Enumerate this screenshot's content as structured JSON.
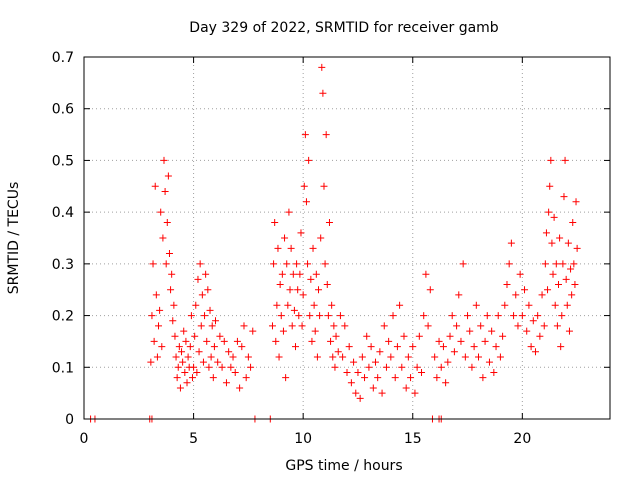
{
  "chart_data": {
    "type": "scatter",
    "title": "Day 329 of 2022, SRMTID for receiver gamb",
    "xlabel": "GPS time / hours",
    "ylabel": "SRMTID / TECUs",
    "xlim": [
      0,
      24
    ],
    "ylim": [
      0,
      0.7
    ],
    "xticks": [
      0,
      5,
      10,
      15,
      20
    ],
    "xtick_labels": [
      "0",
      "5",
      "10",
      "15",
      "20"
    ],
    "yticks": [
      0,
      0.1,
      0.2,
      0.3,
      0.4,
      0.5,
      0.6,
      0.7
    ],
    "ytick_labels": [
      "0",
      "0.1",
      "0.2",
      "0.3",
      "0.4",
      "0.5",
      "0.6",
      "0.7"
    ],
    "grid": true,
    "marker": "+",
    "color": "#ff0000",
    "series": [
      {
        "name": "SRMTID",
        "points": [
          [
            0.3,
            0
          ],
          [
            0.5,
            0
          ],
          [
            3.0,
            0
          ],
          [
            3.1,
            0
          ],
          [
            7.8,
            0
          ],
          [
            8.5,
            0
          ],
          [
            15.9,
            0
          ],
          [
            16.2,
            0
          ],
          [
            16.3,
            0
          ],
          [
            3.05,
            0.11
          ],
          [
            3.1,
            0.2
          ],
          [
            3.15,
            0.3
          ],
          [
            3.2,
            0.15
          ],
          [
            3.25,
            0.45
          ],
          [
            3.3,
            0.24
          ],
          [
            3.35,
            0.12
          ],
          [
            3.4,
            0.18
          ],
          [
            3.45,
            0.21
          ],
          [
            3.5,
            0.4
          ],
          [
            3.55,
            0.14
          ],
          [
            3.6,
            0.35
          ],
          [
            3.65,
            0.5
          ],
          [
            3.7,
            0.44
          ],
          [
            3.75,
            0.3
          ],
          [
            3.8,
            0.38
          ],
          [
            3.85,
            0.47
          ],
          [
            3.9,
            0.32
          ],
          [
            3.95,
            0.25
          ],
          [
            4.0,
            0.28
          ],
          [
            4.05,
            0.19
          ],
          [
            4.1,
            0.22
          ],
          [
            4.15,
            0.16
          ],
          [
            4.2,
            0.12
          ],
          [
            4.25,
            0.08
          ],
          [
            4.3,
            0.1
          ],
          [
            4.35,
            0.14
          ],
          [
            4.4,
            0.06
          ],
          [
            4.45,
            0.13
          ],
          [
            4.5,
            0.11
          ],
          [
            4.55,
            0.17
          ],
          [
            4.6,
            0.09
          ],
          [
            4.65,
            0.15
          ],
          [
            4.7,
            0.07
          ],
          [
            4.75,
            0.12
          ],
          [
            4.8,
            0.1
          ],
          [
            4.85,
            0.14
          ],
          [
            4.9,
            0.2
          ],
          [
            4.95,
            0.08
          ],
          [
            5.0,
            0.1
          ],
          [
            5.05,
            0.16
          ],
          [
            5.1,
            0.22
          ],
          [
            5.15,
            0.09
          ],
          [
            5.2,
            0.27
          ],
          [
            5.25,
            0.13
          ],
          [
            5.3,
            0.3
          ],
          [
            5.35,
            0.18
          ],
          [
            5.4,
            0.24
          ],
          [
            5.45,
            0.11
          ],
          [
            5.5,
            0.2
          ],
          [
            5.55,
            0.28
          ],
          [
            5.6,
            0.15
          ],
          [
            5.65,
            0.25
          ],
          [
            5.7,
            0.1
          ],
          [
            5.75,
            0.21
          ],
          [
            5.8,
            0.12
          ],
          [
            5.85,
            0.18
          ],
          [
            5.9,
            0.08
          ],
          [
            5.95,
            0.14
          ],
          [
            6.0,
            0.19
          ],
          [
            6.1,
            0.11
          ],
          [
            6.2,
            0.16
          ],
          [
            6.3,
            0.1
          ],
          [
            6.4,
            0.15
          ],
          [
            6.5,
            0.07
          ],
          [
            6.6,
            0.13
          ],
          [
            6.7,
            0.1
          ],
          [
            6.8,
            0.12
          ],
          [
            6.9,
            0.09
          ],
          [
            7.0,
            0.15
          ],
          [
            7.1,
            0.06
          ],
          [
            7.2,
            0.14
          ],
          [
            7.3,
            0.18
          ],
          [
            7.4,
            0.08
          ],
          [
            7.5,
            0.12
          ],
          [
            7.6,
            0.1
          ],
          [
            7.7,
            0.17
          ],
          [
            8.6,
            0.18
          ],
          [
            8.65,
            0.3
          ],
          [
            8.7,
            0.38
          ],
          [
            8.75,
            0.15
          ],
          [
            8.8,
            0.22
          ],
          [
            8.85,
            0.33
          ],
          [
            8.9,
            0.12
          ],
          [
            8.95,
            0.26
          ],
          [
            9.0,
            0.2
          ],
          [
            9.05,
            0.28
          ],
          [
            9.1,
            0.17
          ],
          [
            9.15,
            0.35
          ],
          [
            9.2,
            0.08
          ],
          [
            9.25,
            0.3
          ],
          [
            9.3,
            0.22
          ],
          [
            9.35,
            0.4
          ],
          [
            9.4,
            0.25
          ],
          [
            9.45,
            0.33
          ],
          [
            9.5,
            0.18
          ],
          [
            9.55,
            0.28
          ],
          [
            9.6,
            0.21
          ],
          [
            9.65,
            0.14
          ],
          [
            9.7,
            0.3
          ],
          [
            9.75,
            0.25
          ],
          [
            9.8,
            0.2
          ],
          [
            9.85,
            0.28
          ],
          [
            9.9,
            0.36
          ],
          [
            9.95,
            0.18
          ],
          [
            10.0,
            0.24
          ],
          [
            10.05,
            0.45
          ],
          [
            10.1,
            0.55
          ],
          [
            10.15,
            0.42
          ],
          [
            10.2,
            0.3
          ],
          [
            10.25,
            0.5
          ],
          [
            10.3,
            0.2
          ],
          [
            10.35,
            0.27
          ],
          [
            10.4,
            0.15
          ],
          [
            10.45,
            0.33
          ],
          [
            10.5,
            0.22
          ],
          [
            10.55,
            0.17
          ],
          [
            10.6,
            0.28
          ],
          [
            10.65,
            0.12
          ],
          [
            10.7,
            0.25
          ],
          [
            10.75,
            0.2
          ],
          [
            10.8,
            0.35
          ],
          [
            10.85,
            0.68
          ],
          [
            10.9,
            0.63
          ],
          [
            10.95,
            0.45
          ],
          [
            11.0,
            0.3
          ],
          [
            11.05,
            0.55
          ],
          [
            11.1,
            0.26
          ],
          [
            11.15,
            0.2
          ],
          [
            11.2,
            0.38
          ],
          [
            11.25,
            0.15
          ],
          [
            11.3,
            0.22
          ],
          [
            11.35,
            0.12
          ],
          [
            11.4,
            0.18
          ],
          [
            11.45,
            0.1
          ],
          [
            11.5,
            0.16
          ],
          [
            11.6,
            0.13
          ],
          [
            11.7,
            0.2
          ],
          [
            11.8,
            0.12
          ],
          [
            11.9,
            0.18
          ],
          [
            12.0,
            0.09
          ],
          [
            12.1,
            0.14
          ],
          [
            12.2,
            0.07
          ],
          [
            12.3,
            0.11
          ],
          [
            12.4,
            0.05
          ],
          [
            12.5,
            0.09
          ],
          [
            12.6,
            0.04
          ],
          [
            12.7,
            0.12
          ],
          [
            12.8,
            0.08
          ],
          [
            12.9,
            0.16
          ],
          [
            13.0,
            0.1
          ],
          [
            13.1,
            0.14
          ],
          [
            13.2,
            0.06
          ],
          [
            13.3,
            0.11
          ],
          [
            13.4,
            0.08
          ],
          [
            13.5,
            0.13
          ],
          [
            13.6,
            0.05
          ],
          [
            13.7,
            0.18
          ],
          [
            13.8,
            0.1
          ],
          [
            13.9,
            0.15
          ],
          [
            14.0,
            0.12
          ],
          [
            14.1,
            0.2
          ],
          [
            14.2,
            0.08
          ],
          [
            14.3,
            0.14
          ],
          [
            14.4,
            0.22
          ],
          [
            14.5,
            0.1
          ],
          [
            14.6,
            0.16
          ],
          [
            14.7,
            0.06
          ],
          [
            14.8,
            0.12
          ],
          [
            14.9,
            0.08
          ],
          [
            15.0,
            0.14
          ],
          [
            15.1,
            0.05
          ],
          [
            15.2,
            0.1
          ],
          [
            15.3,
            0.16
          ],
          [
            15.4,
            0.09
          ],
          [
            15.5,
            0.2
          ],
          [
            15.6,
            0.28
          ],
          [
            15.7,
            0.18
          ],
          [
            15.8,
            0.25
          ],
          [
            16.0,
            0.12
          ],
          [
            16.1,
            0.08
          ],
          [
            16.2,
            0.15
          ],
          [
            16.3,
            0.1
          ],
          [
            16.4,
            0.14
          ],
          [
            16.5,
            0.07
          ],
          [
            16.6,
            0.11
          ],
          [
            16.7,
            0.16
          ],
          [
            16.8,
            0.2
          ],
          [
            16.9,
            0.13
          ],
          [
            17.0,
            0.18
          ],
          [
            17.1,
            0.24
          ],
          [
            17.2,
            0.15
          ],
          [
            17.3,
            0.3
          ],
          [
            17.4,
            0.12
          ],
          [
            17.5,
            0.2
          ],
          [
            17.6,
            0.17
          ],
          [
            17.7,
            0.1
          ],
          [
            17.8,
            0.14
          ],
          [
            17.9,
            0.22
          ],
          [
            18.0,
            0.12
          ],
          [
            18.1,
            0.18
          ],
          [
            18.2,
            0.08
          ],
          [
            18.3,
            0.15
          ],
          [
            18.4,
            0.2
          ],
          [
            18.5,
            0.11
          ],
          [
            18.6,
            0.17
          ],
          [
            18.7,
            0.09
          ],
          [
            18.8,
            0.14
          ],
          [
            18.9,
            0.2
          ],
          [
            19.0,
            0.12
          ],
          [
            19.1,
            0.16
          ],
          [
            19.2,
            0.22
          ],
          [
            19.3,
            0.26
          ],
          [
            19.4,
            0.3
          ],
          [
            19.5,
            0.34
          ],
          [
            19.6,
            0.2
          ],
          [
            19.7,
            0.24
          ],
          [
            19.8,
            0.18
          ],
          [
            19.9,
            0.28
          ],
          [
            20.0,
            0.2
          ],
          [
            20.1,
            0.25
          ],
          [
            20.2,
            0.17
          ],
          [
            20.3,
            0.22
          ],
          [
            20.4,
            0.14
          ],
          [
            20.5,
            0.19
          ],
          [
            20.6,
            0.13
          ],
          [
            20.7,
            0.2
          ],
          [
            20.8,
            0.16
          ],
          [
            20.9,
            0.24
          ],
          [
            21.0,
            0.18
          ],
          [
            21.05,
            0.3
          ],
          [
            21.1,
            0.36
          ],
          [
            21.15,
            0.25
          ],
          [
            21.2,
            0.4
          ],
          [
            21.25,
            0.45
          ],
          [
            21.3,
            0.5
          ],
          [
            21.35,
            0.34
          ],
          [
            21.4,
            0.28
          ],
          [
            21.45,
            0.39
          ],
          [
            21.5,
            0.22
          ],
          [
            21.55,
            0.3
          ],
          [
            21.6,
            0.18
          ],
          [
            21.65,
            0.26
          ],
          [
            21.7,
            0.35
          ],
          [
            21.75,
            0.14
          ],
          [
            21.8,
            0.2
          ],
          [
            21.85,
            0.3
          ],
          [
            21.9,
            0.43
          ],
          [
            21.95,
            0.5
          ],
          [
            22.0,
            0.27
          ],
          [
            22.05,
            0.22
          ],
          [
            22.1,
            0.34
          ],
          [
            22.15,
            0.17
          ],
          [
            22.2,
            0.29
          ],
          [
            22.25,
            0.24
          ],
          [
            22.3,
            0.38
          ],
          [
            22.35,
            0.3
          ],
          [
            22.4,
            0.26
          ],
          [
            22.45,
            0.42
          ],
          [
            22.5,
            0.33
          ]
        ]
      }
    ]
  }
}
